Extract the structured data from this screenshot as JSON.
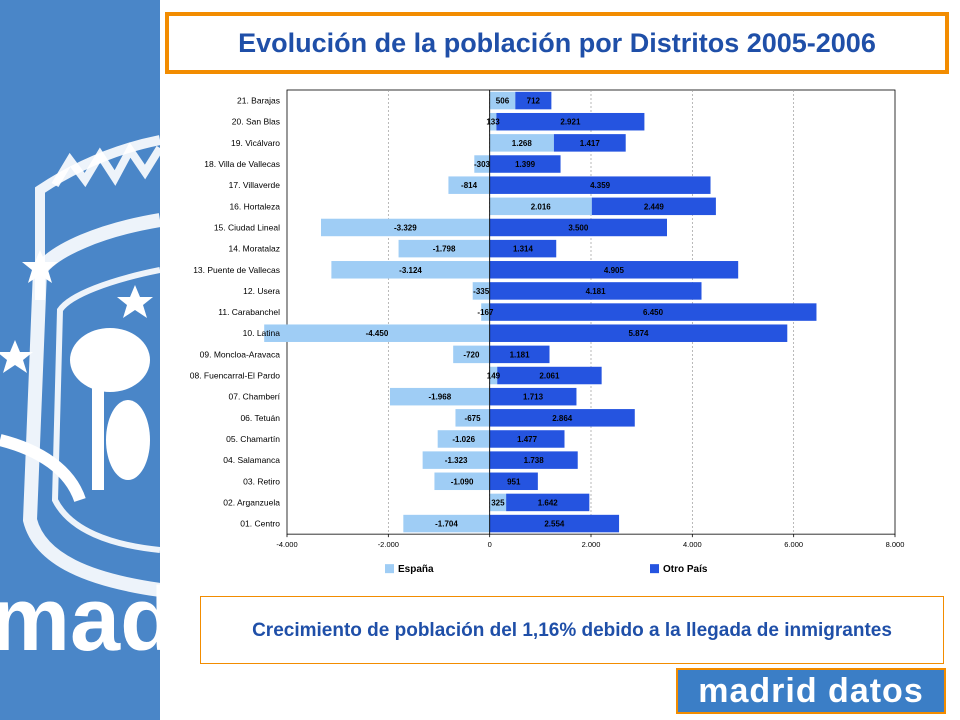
{
  "title": "Evolución de la población por Distritos 2005-2006",
  "caption": "Crecimiento de población del 1,16% debido a la llegada de inmigrantes",
  "logo_text": "madrid datos",
  "sidebar_watermark": "madrid",
  "colors": {
    "espana": "#9fcdf5",
    "otro": "#2554e0",
    "sidebar": "#4a86c8",
    "title": "#1f4fa8",
    "border": "#f28c00"
  },
  "chart_data": {
    "type": "bar",
    "orientation": "horizontal",
    "stacked": true,
    "categories": [
      "21. Barajas",
      "20. San Blas",
      "19. Vicálvaro",
      "18. Villa de Vallecas",
      "17. Villaverde",
      "16. Hortaleza",
      "15. Ciudad Lineal",
      "14. Moratalaz",
      "13.  Puente de Vallecas",
      "12. Usera",
      "11. Carabanchel",
      "10. Latina",
      "09. Moncloa-Aravaca",
      "08. Fuencarral-El Pardo",
      "07. Chamberí",
      "06. Tetuán",
      "05. Chamartín",
      "04. Salamanca",
      "03. Retiro",
      "02. Arganzuela",
      "01. Centro"
    ],
    "series": [
      {
        "name": "España",
        "values": [
          506,
          133,
          1268,
          -303,
          -814,
          2016,
          -3329,
          -1798,
          -3124,
          -335,
          -167,
          -4450,
          -720,
          149,
          -1968,
          -675,
          -1026,
          -1323,
          -1090,
          325,
          -1704
        ],
        "labels": [
          "506",
          "133",
          "1.268",
          "-303",
          "-814",
          "2.016",
          "-3.329",
          "-1.798",
          "-3.124",
          "-335",
          "-167",
          "-4.450",
          "-720",
          "149",
          "-1.968",
          "-675",
          "-1.026",
          "-1.323",
          "-1.090",
          "325",
          "-1.704"
        ]
      },
      {
        "name": "Otro País",
        "values": [
          712,
          2921,
          1417,
          1399,
          4359,
          2449,
          3500,
          1314,
          4905,
          4181,
          6450,
          5874,
          1181,
          2061,
          1713,
          2864,
          1477,
          1738,
          951,
          1642,
          2554
        ],
        "labels": [
          "712",
          "2.921",
          "1.417",
          "1.399",
          "4.359",
          "2.449",
          "3.500",
          "1.314",
          "4.905",
          "4.181",
          "6.450",
          "5.874",
          "1.181",
          "2.061",
          "1.713",
          "2.864",
          "1.477",
          "1.738",
          "951",
          "1.642",
          "2.554"
        ]
      }
    ],
    "xlim": [
      -4000,
      8000
    ],
    "xticks": [
      -4000,
      -2000,
      0,
      2000,
      4000,
      6000,
      8000
    ],
    "xtick_labels": [
      "-4.000",
      "-2.000",
      "0",
      "2.000",
      "4.000",
      "6.000",
      "8.000"
    ],
    "grid": true,
    "legend": [
      "España",
      "Otro País"
    ],
    "legend_position": "bottom"
  }
}
